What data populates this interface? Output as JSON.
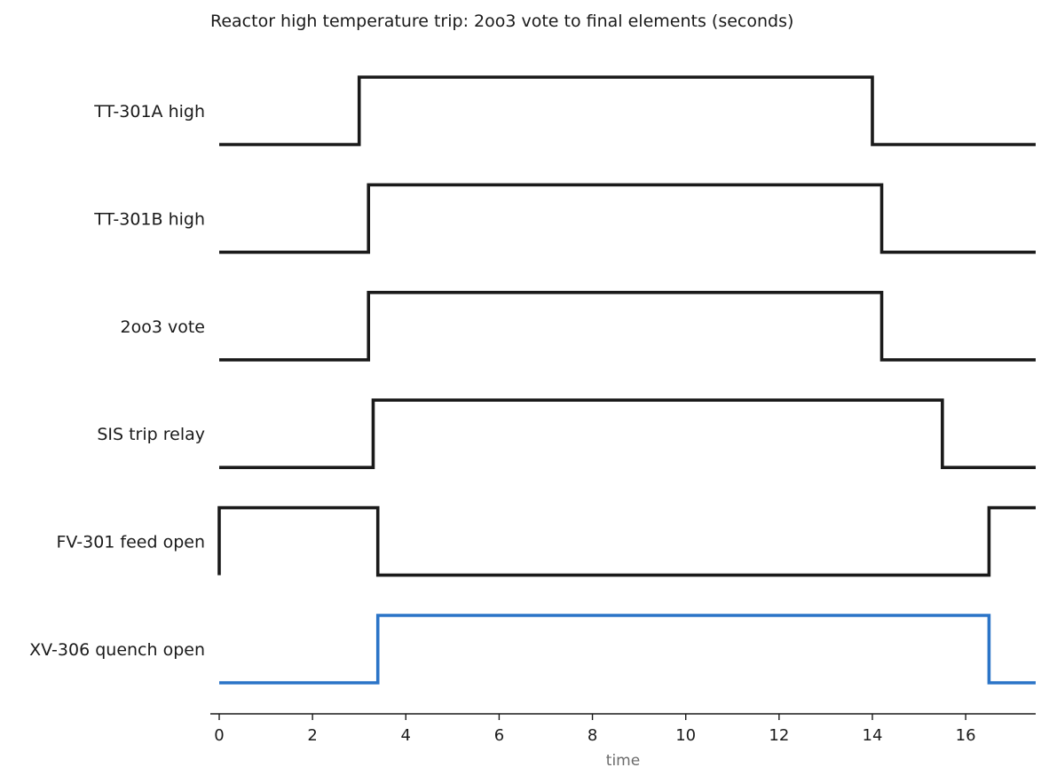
{
  "chart_data": {
    "type": "line",
    "subtype": "digital-timing-diagram",
    "title": "Reactor high temperature trip: 2oo3 vote to final elements (seconds)",
    "xlabel": "time",
    "ylabel": "",
    "xlim": [
      -0.2,
      17.5
    ],
    "xticks": [
      0,
      2,
      4,
      6,
      8,
      10,
      12,
      14,
      16
    ],
    "tick_labels": [
      "0",
      "2",
      "4",
      "6",
      "8",
      "10",
      "12",
      "14",
      "16"
    ],
    "grid": false,
    "legend": "none",
    "line_style": "step",
    "series": [
      {
        "name": "TT-301A high",
        "color": "#1a1a1a",
        "x": [
          0,
          3,
          14,
          17.5
        ],
        "values": [
          0,
          1,
          0,
          0
        ]
      },
      {
        "name": "TT-301B high",
        "color": "#1a1a1a",
        "x": [
          0,
          3.2,
          14.2,
          17.5
        ],
        "values": [
          0,
          1,
          0,
          0
        ]
      },
      {
        "name": "2oo3 vote",
        "color": "#1a1a1a",
        "x": [
          0,
          3.2,
          14.2,
          17.5
        ],
        "values": [
          0,
          1,
          0,
          0
        ]
      },
      {
        "name": "SIS trip relay",
        "color": "#1a1a1a",
        "x": [
          0,
          3.3,
          15.5,
          17.5
        ],
        "values": [
          0,
          1,
          0,
          0
        ]
      },
      {
        "name": "FV-301 feed open",
        "color": "#1a1a1a",
        "x": [
          0,
          3.4,
          16.5,
          17.5
        ],
        "values": [
          1,
          0,
          1,
          1
        ]
      },
      {
        "name": "XV-306 quench open",
        "color": "#2b74c7",
        "x": [
          0,
          3.4,
          16.5,
          17.5
        ],
        "values": [
          0,
          1,
          0,
          0
        ]
      }
    ]
  }
}
